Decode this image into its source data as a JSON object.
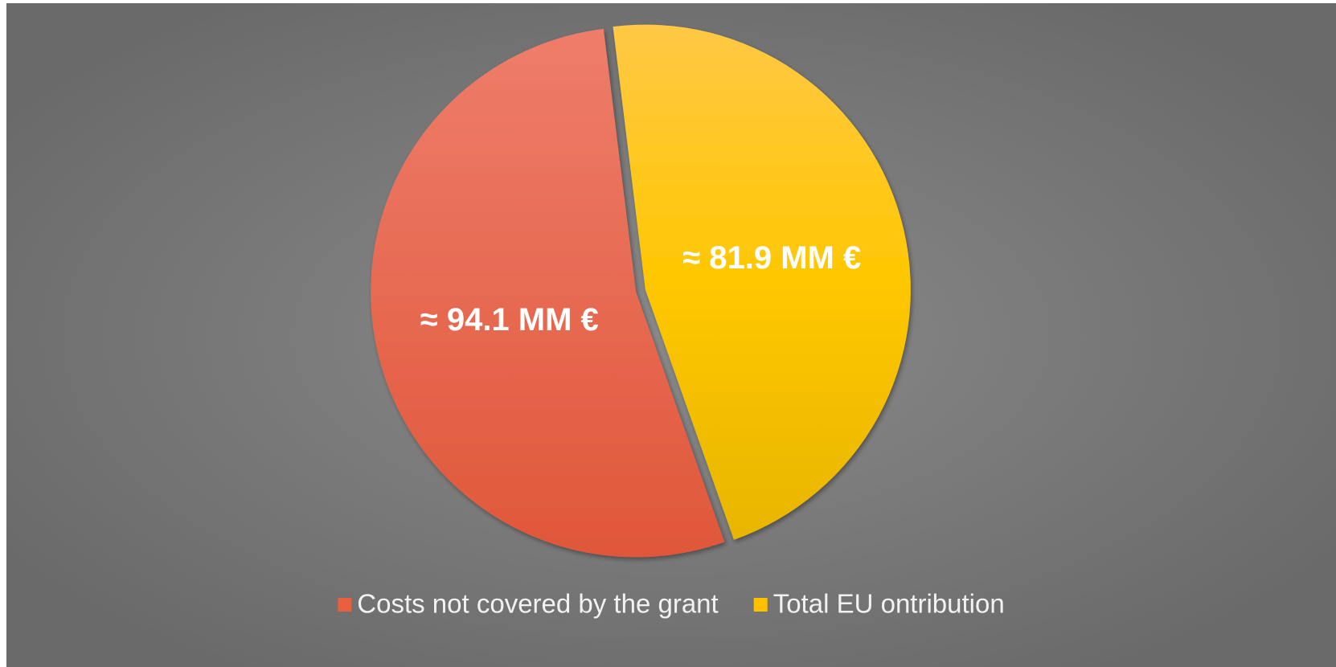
{
  "chart_data": {
    "type": "pie",
    "categories": [
      "Costs not covered by the grant",
      "Total EU ontribution"
    ],
    "values": [
      94.1,
      81.9
    ],
    "value_labels": [
      "≈ 94.1 MM €",
      "≈ 81.9 MM €"
    ],
    "colors": [
      "#e8603e",
      "#ffc000"
    ],
    "legend": "bottom"
  }
}
